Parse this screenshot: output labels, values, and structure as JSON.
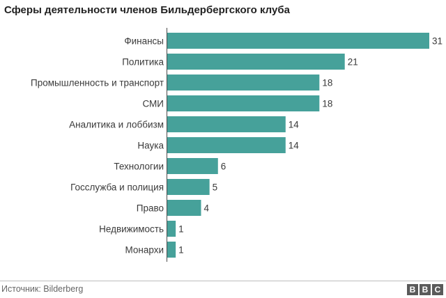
{
  "title": "Сферы деятельности членов Бильдербергского клуба",
  "source": "Источник: Bilderberg",
  "logo": {
    "letters": [
      "B",
      "B",
      "C"
    ]
  },
  "colors": {
    "bar": "#46a19a",
    "text": "#3a3a3a"
  },
  "chart_data": {
    "type": "bar",
    "orientation": "horizontal",
    "categories": [
      "Финансы",
      "Политика",
      "Промышленность и транспорт",
      "СМИ",
      "Аналитика и лоббизм",
      "Наука",
      "Технологии",
      "Госслужба и полиция",
      "Право",
      "Недвижимость",
      "Монархи"
    ],
    "values": [
      31,
      21,
      18,
      18,
      14,
      14,
      6,
      5,
      4,
      1,
      1
    ],
    "xlim": [
      0,
      31
    ],
    "grid": false
  }
}
